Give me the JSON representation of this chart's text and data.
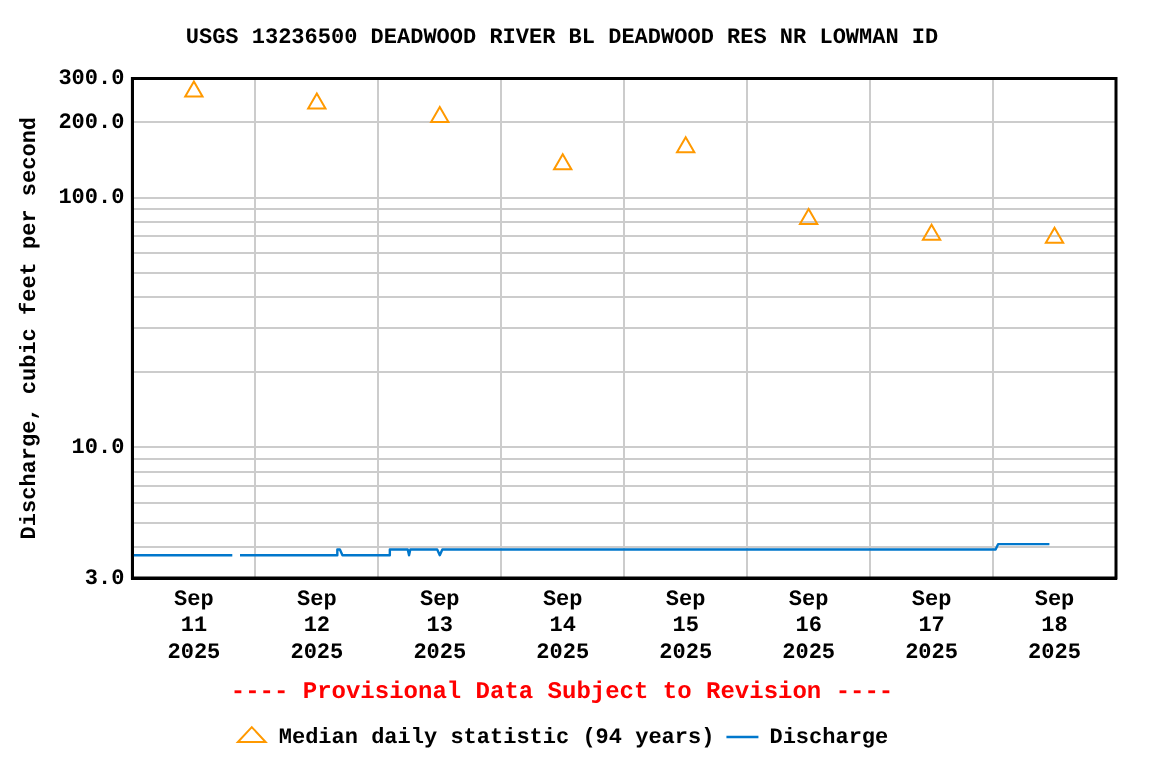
{
  "chart_data": {
    "type": "line",
    "title": "USGS 13236500 DEADWOOD RIVER BL DEADWOOD RES NR LOWMAN ID",
    "ylabel": "Discharge, cubic feet per second",
    "annotations": [
      "---- Provisional Data Subject to Revision ----"
    ],
    "log": "y",
    "grid": true,
    "legend": "bottom",
    "xlim": [
      "2025-09-11T00:00",
      "2025-09-19T00:00"
    ],
    "xticks": [
      {
        "value": "2025-09-11T00:00",
        "label": null
      },
      {
        "value": "2025-09-11T12:00",
        "label": "Sep 11 2025"
      },
      {
        "value": "2025-09-12T00:00",
        "label": null
      },
      {
        "value": "2025-09-12T12:00",
        "label": "Sep 12 2025"
      },
      {
        "value": "2025-09-13T00:00",
        "label": null
      },
      {
        "value": "2025-09-13T12:00",
        "label": "Sep 13 2025"
      },
      {
        "value": "2025-09-14T00:00",
        "label": null
      },
      {
        "value": "2025-09-14T12:00",
        "label": "Sep 14 2025"
      },
      {
        "value": "2025-09-15T00:00",
        "label": null
      },
      {
        "value": "2025-09-15T12:00",
        "label": "Sep 15 2025"
      },
      {
        "value": "2025-09-16T00:00",
        "label": null
      },
      {
        "value": "2025-09-16T12:00",
        "label": "Sep 16 2025"
      },
      {
        "value": "2025-09-17T00:00",
        "label": null
      },
      {
        "value": "2025-09-17T12:00",
        "label": "Sep 17 2025"
      },
      {
        "value": "2025-09-18T00:00",
        "label": null
      },
      {
        "value": "2025-09-18T12:00",
        "label": "Sep 18 2025"
      },
      {
        "value": "2025-09-19T00:00",
        "label": null
      }
    ],
    "ylim": [
      3,
      300
    ],
    "yticks": [
      {
        "value": 3,
        "label": "3.0"
      },
      {
        "value": 4,
        "label": null
      },
      {
        "value": 5,
        "label": null
      },
      {
        "value": 6,
        "label": null
      },
      {
        "value": 7,
        "label": null
      },
      {
        "value": 8,
        "label": null
      },
      {
        "value": 9,
        "label": null
      },
      {
        "value": 10,
        "label": "10.0"
      },
      {
        "value": 20,
        "label": null
      },
      {
        "value": 30,
        "label": null
      },
      {
        "value": 40,
        "label": null
      },
      {
        "value": 50,
        "label": null
      },
      {
        "value": 60,
        "label": null
      },
      {
        "value": 70,
        "label": null
      },
      {
        "value": 80,
        "label": null
      },
      {
        "value": 90,
        "label": null
      },
      {
        "value": 100,
        "label": "100.0"
      },
      {
        "value": 200,
        "label": "200.0"
      },
      {
        "value": 300,
        "label": "300.0"
      }
    ],
    "series": [
      {
        "name": "Median daily statistic (94 years)",
        "type": "scatter",
        "marker": "triangle",
        "color": "#ff9900",
        "x": [
          "2025-09-11T12:00",
          "2025-09-12T12:00",
          "2025-09-13T12:00",
          "2025-09-14T12:00",
          "2025-09-15T12:00",
          "2025-09-16T12:00",
          "2025-09-17T12:00",
          "2025-09-18T12:00"
        ],
        "values": [
          266,
          238,
          210,
          136,
          159,
          82,
          71,
          69
        ]
      },
      {
        "name": "Discharge",
        "type": "line",
        "marker": "none",
        "color": "#0077cc",
        "x": [
          "2025-09-11T00:00",
          "2025-09-11T19:30",
          "2025-09-11T20:00",
          "2025-09-11T21:00",
          "2025-09-12T15:45",
          "2025-09-12T16:00",
          "2025-09-12T16:30",
          "2025-09-12T17:00",
          "2025-09-13T02:00",
          "2025-09-13T02:15",
          "2025-09-13T05:45",
          "2025-09-13T06:00",
          "2025-09-13T06:15",
          "2025-09-13T11:30",
          "2025-09-13T12:00",
          "2025-09-13T12:30",
          "2025-09-18T00:30",
          "2025-09-18T01:00",
          "2025-09-18T11:00"
        ],
        "values": [
          3.7,
          3.7,
          null,
          3.7,
          3.7,
          3.9,
          3.9,
          3.7,
          3.7,
          3.9,
          3.9,
          3.7,
          3.9,
          3.9,
          3.7,
          3.9,
          3.9,
          4.1,
          4.1
        ]
      }
    ]
  }
}
